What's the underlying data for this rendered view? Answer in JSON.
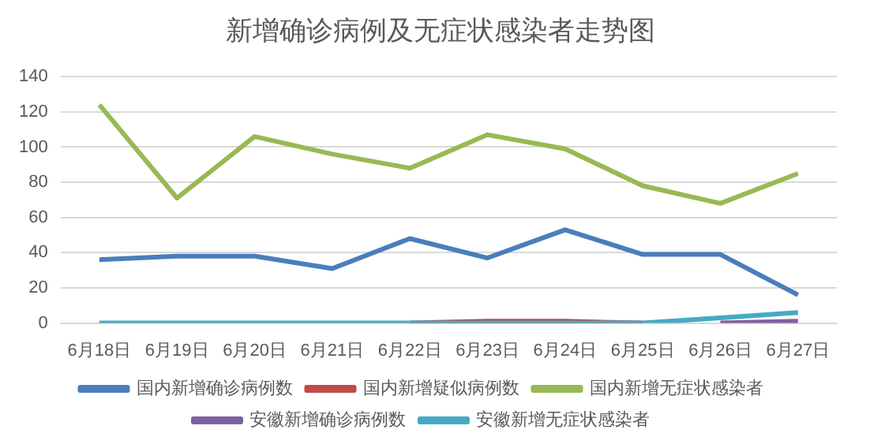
{
  "chart_data": {
    "type": "line",
    "title": "新增确诊病例及无症状感染者走势图",
    "categories": [
      "6月18日",
      "6月19日",
      "6月20日",
      "6月21日",
      "6月22日",
      "6月23日",
      "6月24日",
      "6月25日",
      "6月26日",
      "6月27日"
    ],
    "series": [
      {
        "name": "国内新增确诊病例数",
        "color": "#4a7ebb",
        "values": [
          36,
          38,
          38,
          31,
          48,
          37,
          53,
          39,
          39,
          16
        ]
      },
      {
        "name": "国内新增疑似病例数",
        "color": "#be4b48",
        "values": [
          null,
          null,
          null,
          null,
          0,
          1,
          1,
          0,
          null,
          null
        ]
      },
      {
        "name": "国内新增无症状感染者",
        "color": "#98b954",
        "values": [
          124,
          71,
          106,
          96,
          88,
          107,
          99,
          78,
          68,
          85
        ]
      },
      {
        "name": "安徽新增确诊病例数",
        "color": "#7d60a0",
        "values": [
          null,
          null,
          null,
          null,
          null,
          null,
          null,
          null,
          0,
          1
        ]
      },
      {
        "name": "安徽新增无症状感染者",
        "color": "#46aac5",
        "values": [
          0,
          0,
          0,
          0,
          0,
          0,
          0,
          0,
          3,
          6
        ]
      }
    ],
    "ylim": [
      0,
      140
    ],
    "yticks": [
      0,
      20,
      40,
      60,
      80,
      100,
      120,
      140
    ],
    "grid": "y",
    "legend": "bottom",
    "marker": "none",
    "line_style": "solid"
  }
}
